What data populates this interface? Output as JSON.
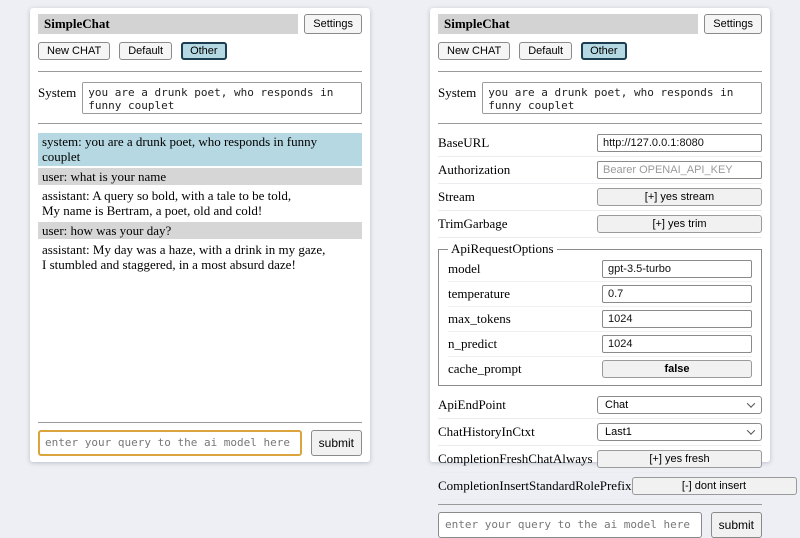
{
  "colors": {
    "page_bg": "#edeff4",
    "title_bar_bg": "#d3d3d3",
    "active_tab_bg": "#b5d9e3",
    "system_message_bg": "#b5d8e2",
    "user_message_bg": "#d6d6d6",
    "focused_input_border": "#dba43c"
  },
  "left": {
    "title": "SimpleChat",
    "settings_button": "Settings",
    "toolbar": {
      "new_chat": "New CHAT",
      "default_session": "Default",
      "other_session": "Other"
    },
    "system": {
      "label": "System",
      "value": "you are a drunk poet, who responds in funny couplet"
    },
    "messages": [
      {
        "role": "system",
        "text": "system: you are a drunk poet, who responds in funny couplet"
      },
      {
        "role": "user",
        "text": "user: what is your name"
      },
      {
        "role": "assistant",
        "text": "assistant: A query so bold, with a tale to be told,\nMy name is Bertram, a poet, old and cold!"
      },
      {
        "role": "user",
        "text": "user: how was your day?"
      },
      {
        "role": "assistant",
        "text": "assistant: My day was a haze, with a drink in my gaze,\nI stumbled and staggered, in a most absurd daze!"
      }
    ],
    "query": {
      "placeholder": "enter your query to the ai model here",
      "submit": "submit"
    }
  },
  "right": {
    "title": "SimpleChat",
    "settings_button": "Settings",
    "toolbar": {
      "new_chat": "New CHAT",
      "default_session": "Default",
      "other_session": "Other"
    },
    "system": {
      "label": "System",
      "value": "you are a drunk poet, who responds in funny couplet"
    },
    "settings": {
      "base_url": {
        "label": "BaseURL",
        "value": "http://127.0.0.1:8080"
      },
      "authorization": {
        "label": "Authorization",
        "placeholder": "Bearer OPENAI_API_KEY"
      },
      "stream": {
        "label": "Stream",
        "button": "[+] yes stream"
      },
      "trim_garbage": {
        "label": "TrimGarbage",
        "button": "[+] yes trim"
      },
      "api_request_options": {
        "legend": "ApiRequestOptions",
        "model": {
          "label": "model",
          "value": "gpt-3.5-turbo"
        },
        "temperature": {
          "label": "temperature",
          "value": "0.7"
        },
        "max_tokens": {
          "label": "max_tokens",
          "value": "1024"
        },
        "n_predict": {
          "label": "n_predict",
          "value": "1024"
        },
        "cache_prompt": {
          "label": "cache_prompt",
          "button": "false"
        }
      },
      "api_endpoint": {
        "label": "ApiEndPoint",
        "value": "Chat"
      },
      "chat_history_in_ctxt": {
        "label": "ChatHistoryInCtxt",
        "value": "Last1"
      },
      "completion_fresh_chat_always": {
        "label": "CompletionFreshChatAlways",
        "button": "[+] yes fresh"
      },
      "completion_insert_standard_role_prefix": {
        "label": "CompletionInsertStandardRolePrefix",
        "button": "[-] dont insert"
      }
    },
    "query": {
      "placeholder": "enter your query to the ai model here",
      "submit": "submit"
    }
  }
}
